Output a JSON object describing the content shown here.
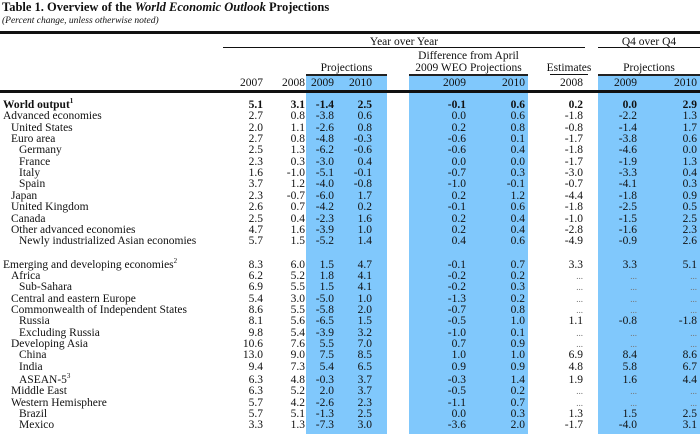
{
  "title": {
    "prefix": "Table 1.  Overview of the ",
    "italic": "World Economic Outlook",
    "suffix": " Projections"
  },
  "subtitle": "(Percent change, unless otherwise noted)",
  "headers": {
    "year_over_year": "Year over Year",
    "q4_over_q4": "Q4 over Q4",
    "projections": "Projections",
    "difference_line1": "Difference from April",
    "difference_line2": "2009 WEO Projections",
    "estimates": "Estimates",
    "q4_projections": "Projections",
    "years": [
      "2007",
      "2008",
      "2009",
      "2010",
      "2009",
      "2010",
      "2008",
      "2009",
      "2010"
    ]
  },
  "colors": {
    "highlight": "#80c8fc"
  },
  "rows": [
    {
      "label": "World output",
      "sup": "1",
      "indent": 0,
      "bold": true,
      "values": [
        "5.1",
        "3.1",
        "-1.4",
        "2.5",
        "-0.1",
        "0.6",
        "0.2",
        "0.0",
        "2.9"
      ]
    },
    {
      "label": "Advanced economies",
      "indent": 0,
      "values": [
        "2.7",
        "0.8",
        "-3.8",
        "0.6",
        "0.0",
        "0.6",
        "-1.8",
        "-2.2",
        "1.3"
      ]
    },
    {
      "label": "United States",
      "indent": 1,
      "values": [
        "2.0",
        "1.1",
        "-2.6",
        "0.8",
        "0.2",
        "0.8",
        "-0.8",
        "-1.4",
        "1.7"
      ]
    },
    {
      "label": "Euro area",
      "indent": 1,
      "values": [
        "2.7",
        "0.8",
        "-4.8",
        "-0.3",
        "-0.6",
        "0.1",
        "-1.7",
        "-3.8",
        "0.6"
      ]
    },
    {
      "label": "Germany",
      "indent": 2,
      "values": [
        "2.5",
        "1.3",
        "-6.2",
        "-0.6",
        "-0.6",
        "0.4",
        "-1.8",
        "-4.6",
        "0.0"
      ]
    },
    {
      "label": "France",
      "indent": 2,
      "values": [
        "2.3",
        "0.3",
        "-3.0",
        "0.4",
        "0.0",
        "0.0",
        "-1.7",
        "-1.9",
        "1.3"
      ]
    },
    {
      "label": "Italy",
      "indent": 2,
      "values": [
        "1.6",
        "-1.0",
        "-5.1",
        "-0.1",
        "-0.7",
        "0.3",
        "-3.0",
        "-3.3",
        "0.4"
      ]
    },
    {
      "label": "Spain",
      "indent": 2,
      "values": [
        "3.7",
        "1.2",
        "-4.0",
        "-0.8",
        "-1.0",
        "-0.1",
        "-0.7",
        "-4.1",
        "0.3"
      ]
    },
    {
      "label": "Japan",
      "indent": 1,
      "values": [
        "2.3",
        "-0.7",
        "-6.0",
        "1.7",
        "0.2",
        "1.2",
        "-4.4",
        "-1.8",
        "0.9"
      ]
    },
    {
      "label": "United Kingdom",
      "indent": 1,
      "values": [
        "2.6",
        "0.7",
        "-4.2",
        "0.2",
        "-0.1",
        "0.6",
        "-1.8",
        "-2.5",
        "0.5"
      ]
    },
    {
      "label": "Canada",
      "indent": 1,
      "values": [
        "2.5",
        "0.4",
        "-2.3",
        "1.6",
        "0.2",
        "0.4",
        "-1.0",
        "-1.5",
        "2.5"
      ]
    },
    {
      "label": "Other advanced economies",
      "indent": 1,
      "values": [
        "4.7",
        "1.6",
        "-3.9",
        "1.0",
        "0.2",
        "0.4",
        "-2.8",
        "-1.6",
        "2.3"
      ]
    },
    {
      "label": "Newly industrialized Asian economies",
      "indent": 2,
      "values": [
        "5.7",
        "1.5",
        "-5.2",
        "1.4",
        "0.4",
        "0.6",
        "-4.9",
        "-0.9",
        "2.6"
      ]
    },
    {
      "label": "Emerging and developing economies",
      "sup": "2",
      "indent": 0,
      "gap": true,
      "values": [
        "8.3",
        "6.0",
        "1.5",
        "4.7",
        "-0.1",
        "0.7",
        "3.3",
        "3.3",
        "5.1"
      ]
    },
    {
      "label": "Africa",
      "indent": 1,
      "values": [
        "6.2",
        "5.2",
        "1.8",
        "4.1",
        "-0.2",
        "0.2",
        "...",
        "...",
        "..."
      ]
    },
    {
      "label": "Sub-Sahara",
      "indent": 2,
      "values": [
        "6.9",
        "5.5",
        "1.5",
        "4.1",
        "-0.2",
        "0.3",
        "...",
        "...",
        "..."
      ]
    },
    {
      "label": "Central and eastern Europe",
      "indent": 1,
      "values": [
        "5.4",
        "3.0",
        "-5.0",
        "1.0",
        "-1.3",
        "0.2",
        "...",
        "...",
        "..."
      ]
    },
    {
      "label": "Commonwealth of Independent States",
      "indent": 1,
      "values": [
        "8.6",
        "5.5",
        "-5.8",
        "2.0",
        "-0.7",
        "0.8",
        "...",
        "...",
        "..."
      ]
    },
    {
      "label": "Russia",
      "indent": 2,
      "values": [
        "8.1",
        "5.6",
        "-6.5",
        "1.5",
        "-0.5",
        "1.0",
        "1.1",
        "-0.8",
        "-1.8"
      ]
    },
    {
      "label": "Excluding Russia",
      "indent": 2,
      "values": [
        "9.8",
        "5.4",
        "-3.9",
        "3.2",
        "-1.0",
        "0.1",
        "...",
        "...",
        "..."
      ]
    },
    {
      "label": "Developing Asia",
      "indent": 1,
      "values": [
        "10.6",
        "7.6",
        "5.5",
        "7.0",
        "0.7",
        "0.9",
        "...",
        "...",
        "..."
      ]
    },
    {
      "label": "China",
      "indent": 2,
      "values": [
        "13.0",
        "9.0",
        "7.5",
        "8.5",
        "1.0",
        "1.0",
        "6.9",
        "8.4",
        "8.6"
      ]
    },
    {
      "label": "India",
      "indent": 2,
      "values": [
        "9.4",
        "7.3",
        "5.4",
        "6.5",
        "0.9",
        "0.9",
        "4.8",
        "5.8",
        "6.7"
      ]
    },
    {
      "label": "ASEAN-5",
      "sup": "3",
      "indent": 2,
      "values": [
        "6.3",
        "4.8",
        "-0.3",
        "3.7",
        "-0.3",
        "1.4",
        "1.9",
        "1.6",
        "4.4"
      ]
    },
    {
      "label": "Middle East",
      "indent": 1,
      "values": [
        "6.3",
        "5.2",
        "2.0",
        "3.7",
        "-0.5",
        "0.2",
        "...",
        "...",
        "..."
      ]
    },
    {
      "label": "Western Hemisphere",
      "indent": 1,
      "values": [
        "5.7",
        "4.2",
        "-2.6",
        "2.3",
        "-1.1",
        "0.7",
        "...",
        "...",
        "..."
      ]
    },
    {
      "label": "Brazil",
      "indent": 2,
      "values": [
        "5.7",
        "5.1",
        "-1.3",
        "2.5",
        "0.0",
        "0.3",
        "1.3",
        "1.5",
        "2.5"
      ]
    },
    {
      "label": "Mexico",
      "indent": 2,
      "values": [
        "3.3",
        "1.3",
        "-7.3",
        "3.0",
        "-3.6",
        "2.0",
        "-1.7",
        "-4.0",
        "3.1"
      ]
    }
  ]
}
